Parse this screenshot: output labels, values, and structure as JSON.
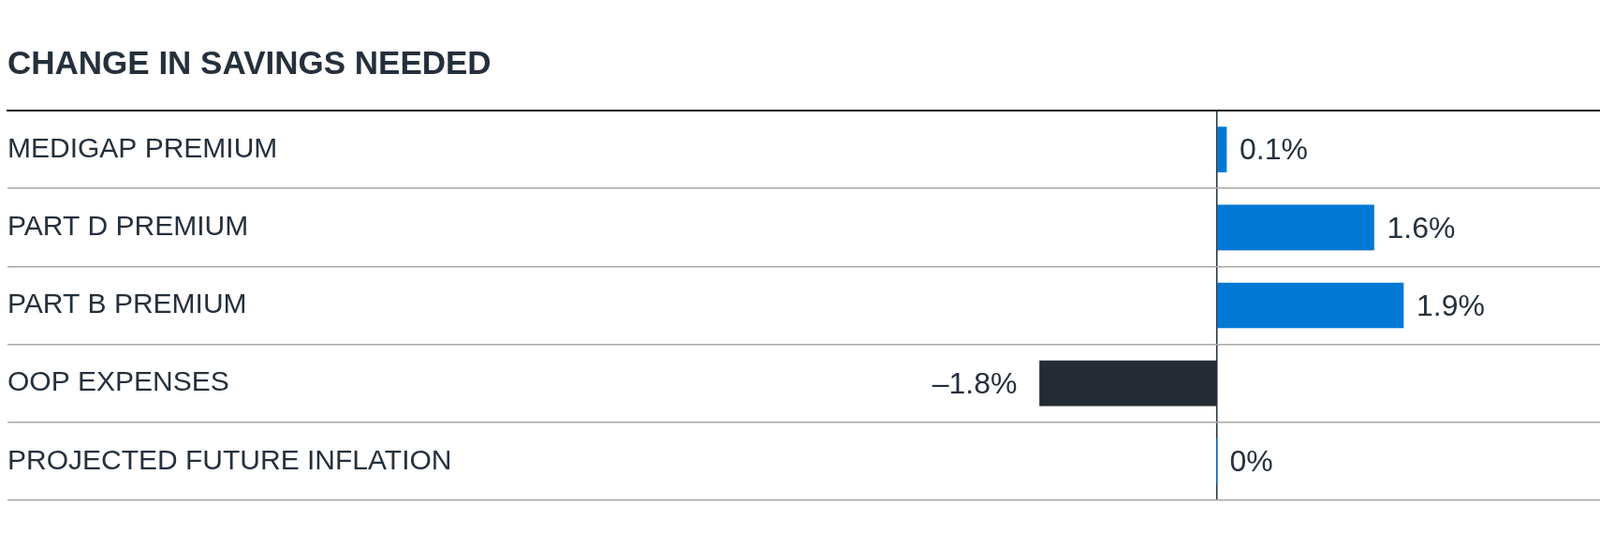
{
  "chart_data": {
    "type": "bar",
    "orientation": "horizontal",
    "title": "CHANGE IN SAVINGS NEEDED",
    "categories": [
      "MEDIGAP PREMIUM",
      "PART D PREMIUM",
      "PART B PREMIUM",
      "OOP EXPENSES",
      "PROJECTED FUTURE INFLATION"
    ],
    "values": [
      0.1,
      1.6,
      1.9,
      -1.8,
      0
    ],
    "value_labels": [
      "0.1%",
      "1.6%",
      "1.9%",
      "–1.8%",
      "0%"
    ],
    "colors": [
      "#0078d4",
      "#0078d4",
      "#0078d4",
      "#252b35",
      "#0078d4"
    ],
    "xlim": [
      -12.3,
      3.9
    ],
    "xticks": [
      0
    ],
    "grid": true,
    "data_labels": true,
    "tick_labels": "y"
  }
}
